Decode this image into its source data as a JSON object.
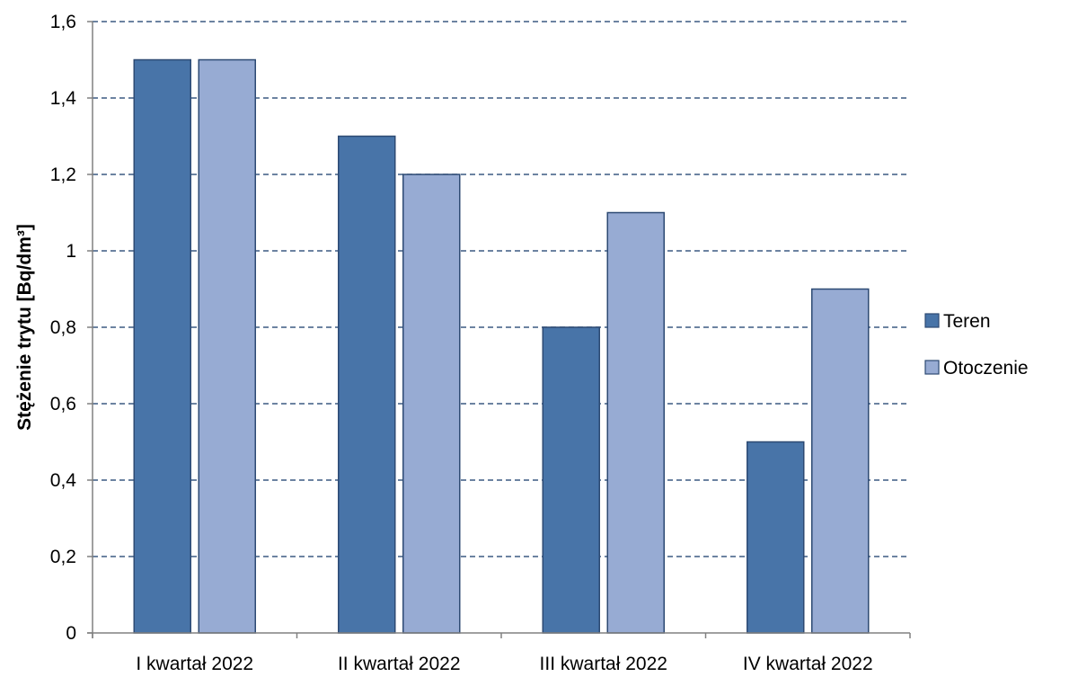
{
  "chart_data": {
    "type": "bar",
    "title": "",
    "xlabel": "",
    "ylabel": "Stężenie trytu [Bq/dm³]",
    "categories": [
      "I kwartał 2022",
      "II kwartał 2022",
      "III kwartał 2022",
      "IV kwartał 2022"
    ],
    "series": [
      {
        "name": "Teren",
        "values": [
          1.5,
          1.3,
          0.8,
          0.5
        ],
        "color": "#4874A8"
      },
      {
        "name": "Otoczenie",
        "values": [
          1.5,
          1.2,
          1.1,
          0.9
        ],
        "color": "#97ABD3"
      }
    ],
    "ylim": [
      0,
      1.6
    ],
    "y_ticks": [
      0,
      0.2,
      0.4,
      0.6,
      0.8,
      1,
      1.2,
      1.4,
      1.6
    ],
    "y_tick_labels": [
      "0",
      "0,2",
      "0,4",
      "0,6",
      "0,8",
      "1",
      "1,2",
      "1,4",
      "1,6"
    ],
    "grid": true,
    "grid_style": "dashed",
    "grid_color": "#3C5A82",
    "bar_outline_color": "#2D4A73",
    "legend_position": "right"
  }
}
